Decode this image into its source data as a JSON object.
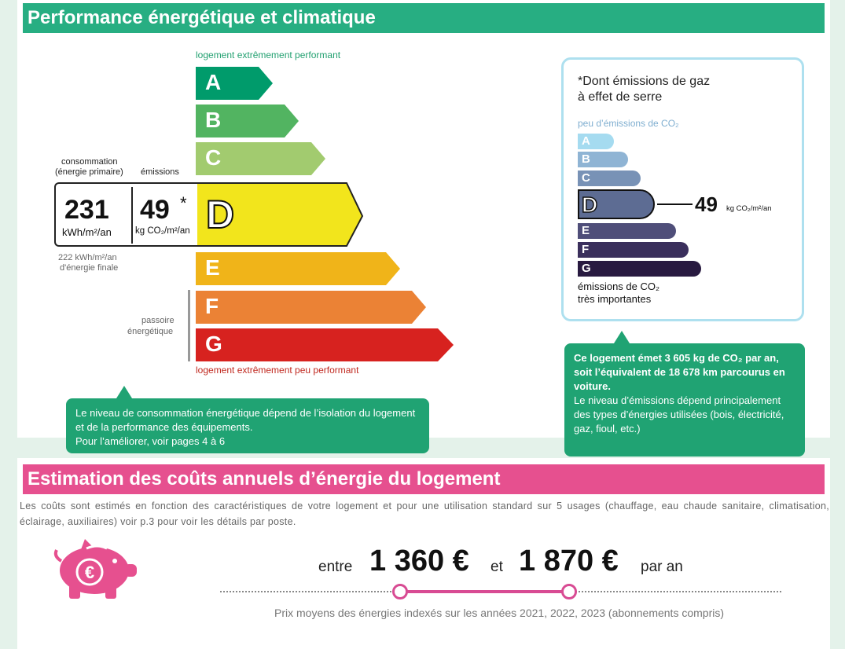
{
  "dpe": {
    "title": "Performance énergétique et climatique",
    "top_label": "logement extrêmement performant",
    "bottom_label": "logement extrêmement peu performant",
    "consumption_label_line1": "consommation",
    "consumption_label_line2": "(énergie primaire)",
    "emissions_label": "émissions",
    "consumption_value": "231",
    "consumption_unit": "kWh/m²/an",
    "emissions_value": "49",
    "emissions_star": "*",
    "emissions_unit": "kg CO₂/m²/an",
    "final_energy_line1": "222 kWh/m²/an",
    "final_energy_line2": "d'énergie finale",
    "passoire_line1": "passoire",
    "passoire_line2": "énergétique",
    "current_class": "D",
    "classes": [
      {
        "letter": "A",
        "color": "#009b6b"
      },
      {
        "letter": "B",
        "color": "#52b461"
      },
      {
        "letter": "C",
        "color": "#a2cb6f"
      },
      {
        "letter": "D",
        "color": "#f2e51c"
      },
      {
        "letter": "E",
        "color": "#f0b419"
      },
      {
        "letter": "F",
        "color": "#eb8235"
      },
      {
        "letter": "G",
        "color": "#d7221f"
      }
    ],
    "bubble_text": "Le niveau de consommation énergétique dépend de l’isolation du logement et de la performance des équipements.",
    "bubble_text2": "Pour l’améliorer, voir pages 4 à 6"
  },
  "ghg": {
    "title_line1": "*Dont émissions de gaz",
    "title_line2": "à effet de serre",
    "top_label": "peu d’émissions de CO₂",
    "bottom_label_line1": "émissions de CO₂",
    "bottom_label_line2": "très importantes",
    "current_class": "D",
    "value": "49",
    "unit": "kg CO₂/m²/an",
    "classes": [
      {
        "letter": "A",
        "color": "#a5dbf0"
      },
      {
        "letter": "B",
        "color": "#8fb4d4"
      },
      {
        "letter": "C",
        "color": "#7892b6"
      },
      {
        "letter": "D",
        "color": "#5d6c93"
      },
      {
        "letter": "E",
        "color": "#4f4e79"
      },
      {
        "letter": "F",
        "color": "#3a2f5c"
      },
      {
        "letter": "G",
        "color": "#281a40"
      }
    ],
    "bubble_bold": "Ce logement émet 3 605 kg de CO₂ par an, soit l’équivalent de 18 678 km parcourus en voiture.",
    "bubble_text": "Le niveau d’émissions dépend principalement des types d’énergies utilisées (bois, électricité, gaz, fioul, etc.)"
  },
  "costs": {
    "title": "Estimation des coûts annuels d’énergie du logement",
    "intro": "Les coûts sont estimés en fonction des caractéristiques de votre logement et pour une utilisation standard sur 5 usages (chauffage, eau chaude sanitaire, climatisation, éclairage, auxiliaires) voir p.3 pour voir les détails par poste.",
    "word_between": "entre",
    "min": "1 360 €",
    "word_and": "et",
    "max": "1 870 €",
    "word_per_year": "par an",
    "note": "Prix moyens des énergies indexés sur les années 2021, 2022, 2023 (abonnements compris)",
    "icon": "piggy-bank-euro-icon",
    "accent": "#e6508f"
  }
}
